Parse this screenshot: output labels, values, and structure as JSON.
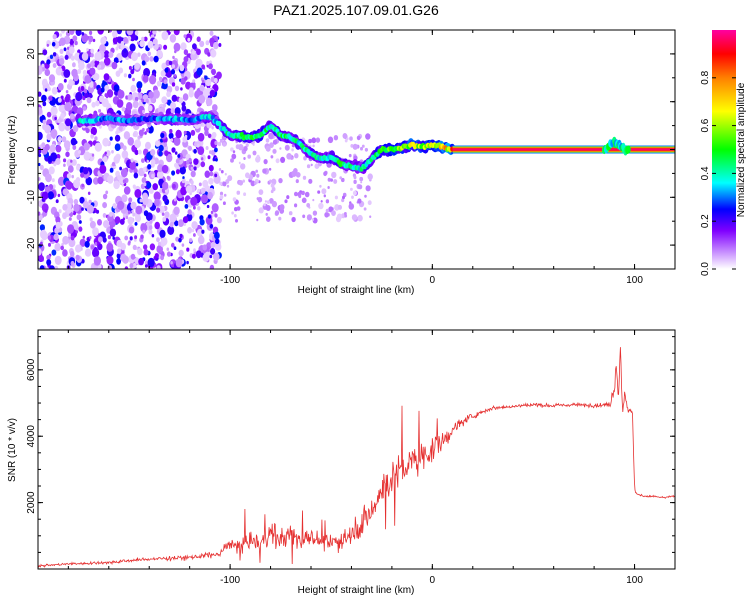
{
  "title": "PAZ1.2025.107.09.01.G26",
  "colors": {
    "snr_line": "#e53030",
    "frame": "#000000"
  },
  "chart_data": [
    {
      "type": "heatmap",
      "xlabel": "Height of straight line (km)",
      "ylabel": "Frequency (Hz)",
      "xlim": [
        -195,
        120
      ],
      "ylim": [
        -25,
        25
      ],
      "x_ticks": [
        -100,
        0,
        100
      ],
      "y_ticks": [
        -20,
        -10,
        0,
        10,
        20
      ],
      "colorbar": {
        "label": "Normalized spectral amplitude",
        "ticks": [
          0.0,
          0.2,
          0.4,
          0.6,
          0.8
        ],
        "range": [
          0,
          1
        ],
        "colormap": [
          "#ffffff",
          "#8a2be2",
          "#0000ff",
          "#00ffff",
          "#00ff00",
          "#ffff00",
          "#ff8000",
          "#ff0000",
          "#ff00ff"
        ]
      },
      "ridge": {
        "x": [
          -170,
          -160,
          -150,
          -140,
          -130,
          -120,
          -110,
          -100,
          -90,
          -85,
          -80,
          -75,
          -70,
          -65,
          -60,
          -55,
          -50,
          -45,
          -40,
          -35,
          -30,
          -25,
          -20,
          -15,
          -10,
          -5,
          0,
          5,
          10,
          20,
          40,
          60,
          80,
          85,
          90,
          95,
          100,
          120
        ],
        "y": [
          6,
          6.5,
          6,
          6.5,
          6.5,
          6,
          7,
          3,
          2.5,
          3,
          5,
          3,
          2.5,
          1,
          -1,
          -2,
          -1.5,
          -3,
          -3.5,
          -4,
          -2,
          0,
          0,
          0.5,
          1,
          0.5,
          1,
          0.5,
          0,
          0,
          0,
          0,
          0,
          0,
          1.5,
          0,
          0,
          0
        ],
        "amplitude": [
          0.35,
          0.3,
          0.3,
          0.25,
          0.35,
          0.3,
          0.35,
          0.4,
          0.45,
          0.5,
          0.4,
          0.45,
          0.4,
          0.4,
          0.4,
          0.4,
          0.4,
          0.45,
          0.4,
          0.4,
          0.45,
          0.5,
          0.55,
          0.55,
          0.6,
          0.55,
          0.6,
          0.65,
          0.75,
          0.9,
          0.9,
          0.9,
          0.9,
          0.85,
          0.5,
          0.7,
          0.9,
          0.9
        ]
      }
    },
    {
      "type": "line",
      "xlabel": "Height of straight line (km)",
      "ylabel": "SNR (10 * v/v)",
      "xlim": [
        -195,
        120
      ],
      "ylim": [
        0,
        7200
      ],
      "x_ticks": [
        -100,
        0,
        100
      ],
      "y_ticks": [
        2000,
        4000,
        6000
      ],
      "series": [
        {
          "x": [
            -195,
            -180,
            -160,
            -140,
            -120,
            -105,
            -100,
            -95,
            -90,
            -85,
            -80,
            -75,
            -70,
            -65,
            -60,
            -55,
            -50,
            -45,
            -40,
            -35,
            -30,
            -25,
            -20,
            -15,
            -10,
            -5,
            0,
            5,
            10,
            15,
            20,
            25,
            30,
            40,
            50,
            60,
            70,
            80,
            88,
            90,
            91,
            92,
            93,
            94,
            95,
            96,
            97,
            98,
            99,
            100,
            101,
            105,
            110,
            115,
            120
          ],
          "y": [
            100,
            150,
            200,
            300,
            350,
            450,
            800,
            700,
            900,
            750,
            1100,
            900,
            1050,
            850,
            1000,
            800,
            750,
            900,
            1100,
            1400,
            1700,
            2400,
            2800,
            3000,
            3200,
            3400,
            3600,
            3800,
            4200,
            4450,
            4600,
            4750,
            4850,
            4900,
            4950,
            4920,
            4950,
            4930,
            4950,
            5500,
            6200,
            5100,
            6800,
            4800,
            5200,
            5000,
            4700,
            4850,
            4700,
            2400,
            2250,
            2200,
            2180,
            2150,
            2200
          ],
          "noise_amplitude": [
            60,
            70,
            80,
            100,
            120,
            150,
            350,
            350,
            450,
            500,
            700,
            600,
            700,
            550,
            500,
            450,
            400,
            500,
            600,
            800,
            900,
            1200,
            1000,
            1000,
            900,
            800,
            700,
            500,
            350,
            250,
            150,
            120,
            100,
            100,
            100,
            100,
            100,
            100,
            120,
            500,
            400,
            300,
            400,
            500,
            300,
            200,
            150,
            150,
            150,
            80,
            60,
            60,
            60,
            60,
            60
          ]
        }
      ]
    }
  ]
}
